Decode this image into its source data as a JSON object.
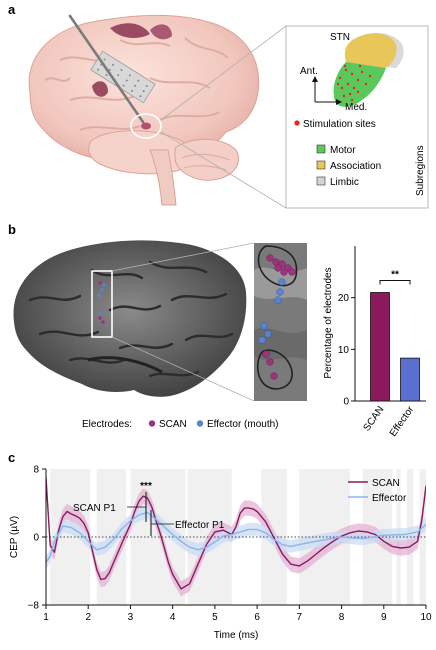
{
  "panel_a": {
    "label": "a",
    "inset_title": "STN",
    "axis_ant": "Ant.",
    "axis_med": "Med.",
    "stimulation_label": "Stimulation sites",
    "subregions_title": "Subregions",
    "legend": [
      {
        "label": "Motor",
        "color": "#5cc85c"
      },
      {
        "label": "Association",
        "color": "#e8c65a"
      },
      {
        "label": "Limbic",
        "color": "#d4d4d4"
      }
    ],
    "stim_color": "#e0281e"
  },
  "panel_b": {
    "label": "b",
    "electrodes_label": "Electrodes:",
    "scan_label": "SCAN",
    "effector_label": "Effector (mouth)",
    "scan_color": "#a0317d",
    "effector_color": "#5a82d2",
    "bar_chart": {
      "type": "bar",
      "categories": [
        "SCAN",
        "Effector"
      ],
      "values": [
        21,
        8.3
      ],
      "colors": [
        "#8b1a5c",
        "#5a6fd0"
      ],
      "ylabel": "Percentage of electrodes",
      "yticks": [
        0,
        10,
        20
      ],
      "ylim": [
        0,
        30
      ],
      "significance": "**"
    }
  },
  "panel_c": {
    "label": "c",
    "chart_data": {
      "type": "line",
      "xlabel": "Time (ms)",
      "ylabel": "CEP (µV)",
      "xlim": [
        1,
        10
      ],
      "ylim": [
        -8,
        8
      ],
      "xticks": [
        1,
        2,
        3,
        4,
        5,
        6,
        7,
        8,
        9,
        10
      ],
      "yticks": [
        -8,
        0,
        8
      ],
      "legend_position": "top-right",
      "annotations": {
        "significance": "***",
        "scan_p1": "SCAN P1",
        "effector_p1": "Effector P1"
      },
      "shaded_intervals": [
        [
          1.1,
          2.05
        ],
        [
          2.2,
          2.9
        ],
        [
          3.0,
          4.3
        ],
        [
          4.35,
          5.4
        ],
        [
          6.1,
          6.7
        ],
        [
          7.0,
          8.2
        ],
        [
          8.5,
          9.2
        ],
        [
          9.3,
          9.4
        ],
        [
          9.55,
          9.7
        ],
        [
          9.85,
          10.0
        ]
      ],
      "series": [
        {
          "name": "SCAN",
          "color": "#8b1a5c",
          "band_color": "#e3b1d4",
          "x": [
            1.0,
            1.05,
            1.1,
            1.2,
            1.3,
            1.4,
            1.5,
            1.6,
            1.7,
            1.8,
            1.9,
            2.0,
            2.1,
            2.2,
            2.3,
            2.4,
            2.5,
            2.6,
            2.8,
            3.0,
            3.1,
            3.2,
            3.3,
            3.4,
            3.5,
            3.6,
            3.7,
            3.8,
            3.9,
            4.0,
            4.2,
            4.4,
            4.6,
            4.8,
            5.0,
            5.2,
            5.4,
            5.5,
            5.6,
            5.7,
            5.8,
            5.9,
            6.0,
            6.2,
            6.4,
            6.6,
            6.8,
            7.0,
            7.2,
            7.4,
            7.6,
            7.8,
            8.0,
            8.2,
            8.4,
            8.6,
            8.8,
            9.0,
            9.2,
            9.4,
            9.6,
            9.8,
            9.9,
            10.0
          ],
          "y": [
            7.0,
            3.0,
            -1.0,
            -1.8,
            0.8,
            2.4,
            3.0,
            2.7,
            2.5,
            2.2,
            1.6,
            0.5,
            -1.6,
            -3.8,
            -5.0,
            -4.9,
            -4.2,
            -3.0,
            -0.7,
            1.5,
            3.0,
            4.2,
            4.8,
            4.6,
            3.6,
            2.0,
            0.5,
            -1.2,
            -3.0,
            -4.4,
            -6.1,
            -5.5,
            -3.2,
            -0.9,
            0.6,
            0.8,
            0.3,
            1.2,
            2.8,
            3.4,
            3.4,
            3.3,
            3.0,
            1.8,
            -0.1,
            -2.0,
            -3.2,
            -3.4,
            -2.8,
            -2.0,
            -1.2,
            -0.5,
            0.1,
            0.5,
            0.7,
            0.6,
            0.3,
            -0.5,
            -1.1,
            -1.3,
            -1.2,
            -0.5,
            2.0,
            6.0
          ]
        },
        {
          "name": "Effector",
          "color": "#8fb3ea",
          "band_color": "#c9dcf4",
          "x": [
            1.0,
            1.1,
            1.2,
            1.4,
            1.6,
            1.8,
            2.0,
            2.2,
            2.4,
            2.6,
            2.8,
            3.0,
            3.2,
            3.4,
            3.6,
            3.8,
            4.0,
            4.2,
            4.4,
            4.6,
            4.8,
            5.0,
            5.2,
            5.4,
            5.6,
            5.8,
            6.0,
            6.2,
            6.4,
            6.6,
            6.8,
            7.0,
            7.5,
            8.0,
            8.5,
            9.0,
            9.5,
            9.8,
            10.0
          ],
          "y": [
            -3.0,
            -2.2,
            -0.5,
            1.3,
            1.1,
            0.5,
            -0.5,
            -1.5,
            -1.2,
            -0.3,
            1.0,
            1.9,
            2.6,
            2.9,
            2.1,
            1.2,
            0.3,
            -0.5,
            -1.2,
            -1.5,
            -1.2,
            -0.6,
            0.1,
            0.3,
            0.6,
            0.9,
            0.9,
            0.5,
            -0.3,
            -0.9,
            -1.1,
            -0.9,
            -0.4,
            0.0,
            -0.2,
            0.2,
            0.3,
            0.6,
            1.5
          ]
        }
      ]
    }
  }
}
